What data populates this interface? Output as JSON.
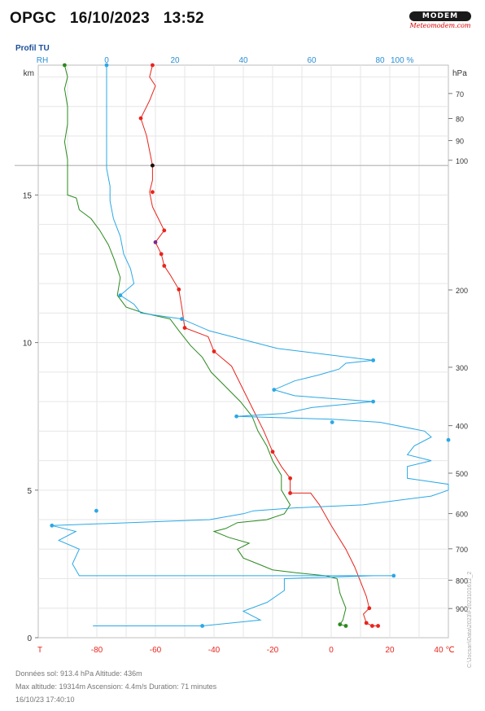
{
  "header": {
    "station": "OPGC",
    "date": "16/10/2023",
    "time": "13:52"
  },
  "logo": {
    "name": "MODEM",
    "url": "Meteomodem.com"
  },
  "subtitle": "Profil TU",
  "footer": {
    "ground": "Données sol: 913.4 hPa  Altitude: 436m",
    "flight": "Max altitude: 19314m    Ascension: 4.4m/s    Duration: 71 minutes",
    "timestamp": "16/10/23 17:40:10"
  },
  "side_note": "C:\\Jocsan\\Data\\2023\\F2023101612_2",
  "colors": {
    "temperature": "#e8241c",
    "dewpoint": "#2a8a1e",
    "humidity": "#2aa8e6",
    "rh_axis": "#2a8fd6",
    "t_axis": "#e8241c",
    "grid": "#e6e6e6"
  },
  "chart_data": {
    "type": "line",
    "top_axis": {
      "label": "RH",
      "ticks": [
        0,
        20,
        40,
        60,
        80
      ],
      "end_label": "100 %",
      "range": [
        -20,
        100
      ]
    },
    "bottom_axis": {
      "label": "T",
      "ticks": [
        -80,
        -60,
        -40,
        -20,
        0,
        20
      ],
      "end_label": "40 ℃",
      "range": [
        -100,
        40
      ]
    },
    "left_axis": {
      "label": "km",
      "ticks": [
        0,
        5,
        10,
        15
      ],
      "range": [
        0,
        19.4
      ]
    },
    "right_axis": {
      "label": "hPa",
      "ticks": [
        70,
        80,
        90,
        100,
        200,
        300,
        400,
        500,
        600,
        700,
        800,
        900
      ]
    },
    "tropopause_km": 16.0,
    "series": [
      {
        "key": "temperature",
        "points": [
          [
            16,
            0.4
          ],
          [
            14,
            0.4
          ],
          [
            12,
            0.5
          ],
          [
            11,
            0.8
          ],
          [
            13,
            1.0
          ],
          [
            12,
            1.4
          ],
          [
            10,
            1.9
          ],
          [
            8,
            2.4
          ],
          [
            5,
            3.0
          ],
          [
            0,
            3.8
          ],
          [
            -4,
            4.5
          ],
          [
            -7,
            4.9
          ],
          [
            -14,
            4.9
          ],
          [
            -14,
            5.4
          ],
          [
            -17,
            5.8
          ],
          [
            -20,
            6.3
          ],
          [
            -23,
            7.0
          ],
          [
            -27,
            7.8
          ],
          [
            -30,
            8.4
          ],
          [
            -34,
            9.2
          ],
          [
            -40,
            9.7
          ],
          [
            -42,
            10.2
          ],
          [
            -50,
            10.5
          ],
          [
            -51,
            11.2
          ],
          [
            -52,
            11.8
          ],
          [
            -55,
            12.3
          ],
          [
            -57,
            12.6
          ],
          [
            -58,
            13.0
          ],
          [
            -60,
            13.4
          ],
          [
            -57,
            13.8
          ],
          [
            -59,
            14.2
          ],
          [
            -61,
            14.6
          ],
          [
            -62,
            15.1
          ],
          [
            -61,
            15.5
          ],
          [
            -61,
            16.0
          ],
          [
            -62,
            16.5
          ],
          [
            -63,
            17.0
          ],
          [
            -65,
            17.6
          ],
          [
            -62,
            18.2
          ],
          [
            -60,
            18.7
          ],
          [
            -62,
            19.0
          ],
          [
            -61,
            19.4
          ]
        ],
        "markers": [
          [
            16,
            0.4
          ],
          [
            14,
            0.4
          ],
          [
            12,
            0.5
          ],
          [
            13,
            1.0
          ],
          [
            -14,
            4.9
          ],
          [
            -14,
            5.4
          ],
          [
            -20,
            6.3
          ],
          [
            -40,
            9.7
          ],
          [
            -50,
            10.5
          ],
          [
            -52,
            11.8
          ],
          [
            -57,
            12.6
          ],
          [
            -58,
            13.0
          ],
          [
            -57,
            13.8
          ],
          [
            -61,
            15.1
          ],
          [
            -61,
            16.0
          ],
          [
            -65,
            17.6
          ],
          [
            -61,
            19.4
          ]
        ]
      },
      {
        "key": "dewpoint",
        "points": [
          [
            5,
            0.4
          ],
          [
            3,
            0.45
          ],
          [
            4,
            0.6
          ],
          [
            5,
            1.0
          ],
          [
            3,
            1.5
          ],
          [
            2,
            2.0
          ],
          [
            -2,
            2.1
          ],
          [
            -12,
            2.2
          ],
          [
            -20,
            2.3
          ],
          [
            -25,
            2.5
          ],
          [
            -30,
            2.7
          ],
          [
            -32,
            3.0
          ],
          [
            -28,
            3.2
          ],
          [
            -35,
            3.4
          ],
          [
            -40,
            3.6
          ],
          [
            -36,
            3.7
          ],
          [
            -32,
            3.9
          ],
          [
            -22,
            4.0
          ],
          [
            -16,
            4.2
          ],
          [
            -14,
            4.5
          ],
          [
            -17,
            5.0
          ],
          [
            -17,
            5.5
          ],
          [
            -20,
            6.0
          ],
          [
            -22,
            6.5
          ],
          [
            -25,
            7.0
          ],
          [
            -27,
            7.5
          ],
          [
            -31,
            8.0
          ],
          [
            -36,
            8.5
          ],
          [
            -41,
            9.0
          ],
          [
            -44,
            9.5
          ],
          [
            -48,
            9.9
          ],
          [
            -52,
            10.4
          ],
          [
            -55,
            10.8
          ],
          [
            -64,
            11.0
          ],
          [
            -70,
            11.2
          ],
          [
            -73,
            11.6
          ],
          [
            -72,
            12.2
          ],
          [
            -74,
            12.8
          ],
          [
            -76,
            13.3
          ],
          [
            -79,
            13.8
          ],
          [
            -82,
            14.2
          ],
          [
            -86,
            14.5
          ],
          [
            -87,
            14.9
          ],
          [
            -90,
            15.0
          ],
          [
            -90,
            15.6
          ],
          [
            -90,
            16.2
          ],
          [
            -91,
            16.8
          ],
          [
            -90,
            17.4
          ],
          [
            -90,
            18.0
          ],
          [
            -91,
            18.6
          ],
          [
            -90,
            19.0
          ],
          [
            -91,
            19.4
          ]
        ],
        "markers": [
          [
            5,
            0.4
          ],
          [
            3,
            0.45
          ],
          [
            -91,
            19.4
          ]
        ]
      },
      {
        "key": "humidity",
        "points": [
          [
            -4,
            0.4
          ],
          [
            28,
            0.4
          ],
          [
            45,
            0.6
          ],
          [
            40,
            0.9
          ],
          [
            47,
            1.2
          ],
          [
            52,
            1.6
          ],
          [
            52,
            2.0
          ],
          [
            78,
            2.1
          ],
          [
            84,
            2.1
          ],
          [
            80,
            2.1
          ],
          [
            -8,
            2.1
          ],
          [
            -10,
            2.5
          ],
          [
            -8,
            3.0
          ],
          [
            -14,
            3.3
          ],
          [
            -9,
            3.6
          ],
          [
            -16,
            3.8
          ],
          [
            30,
            4.0
          ],
          [
            40,
            4.2
          ],
          [
            43,
            4.3
          ],
          [
            55,
            4.4
          ],
          [
            75,
            4.5
          ],
          [
            95,
            4.8
          ],
          [
            100,
            5.0
          ],
          [
            100,
            5.2
          ],
          [
            88,
            5.4
          ],
          [
            88,
            5.8
          ],
          [
            95,
            6.0
          ],
          [
            88,
            6.2
          ],
          [
            90,
            6.5
          ],
          [
            95,
            6.8
          ],
          [
            93,
            7.0
          ],
          [
            80,
            7.3
          ],
          [
            66,
            7.4
          ],
          [
            38,
            7.5
          ],
          [
            52,
            7.6
          ],
          [
            60,
            7.8
          ],
          [
            78,
            8.0
          ],
          [
            55,
            8.2
          ],
          [
            49,
            8.4
          ],
          [
            55,
            8.7
          ],
          [
            62,
            8.9
          ],
          [
            68,
            9.1
          ],
          [
            70,
            9.3
          ],
          [
            78,
            9.4
          ],
          [
            64,
            9.6
          ],
          [
            50,
            9.8
          ],
          [
            40,
            10.1
          ],
          [
            30,
            10.4
          ],
          [
            22,
            10.8
          ],
          [
            10,
            11.0
          ],
          [
            8,
            11.3
          ],
          [
            4,
            11.6
          ],
          [
            8,
            12.0
          ],
          [
            7,
            12.5
          ],
          [
            5,
            13.0
          ],
          [
            4,
            13.6
          ],
          [
            2,
            14.2
          ],
          [
            1,
            14.8
          ],
          [
            1,
            15.3
          ],
          [
            0,
            15.9
          ],
          [
            0,
            16.5
          ],
          [
            0,
            17.0
          ],
          [
            0,
            17.6
          ],
          [
            0,
            18.2
          ],
          [
            0,
            18.8
          ],
          [
            0,
            19.4
          ]
        ],
        "markers": [
          [
            28,
            0.4
          ],
          [
            84,
            2.1
          ],
          [
            -16,
            3.8
          ],
          [
            -3,
            4.3
          ],
          [
            100,
            6.7
          ],
          [
            66,
            7.3
          ],
          [
            38,
            7.5
          ],
          [
            78,
            8.0
          ],
          [
            49,
            8.4
          ],
          [
            78,
            9.4
          ],
          [
            22,
            10.8
          ],
          [
            4,
            11.6
          ],
          [
            0,
            19.4
          ]
        ]
      }
    ]
  }
}
